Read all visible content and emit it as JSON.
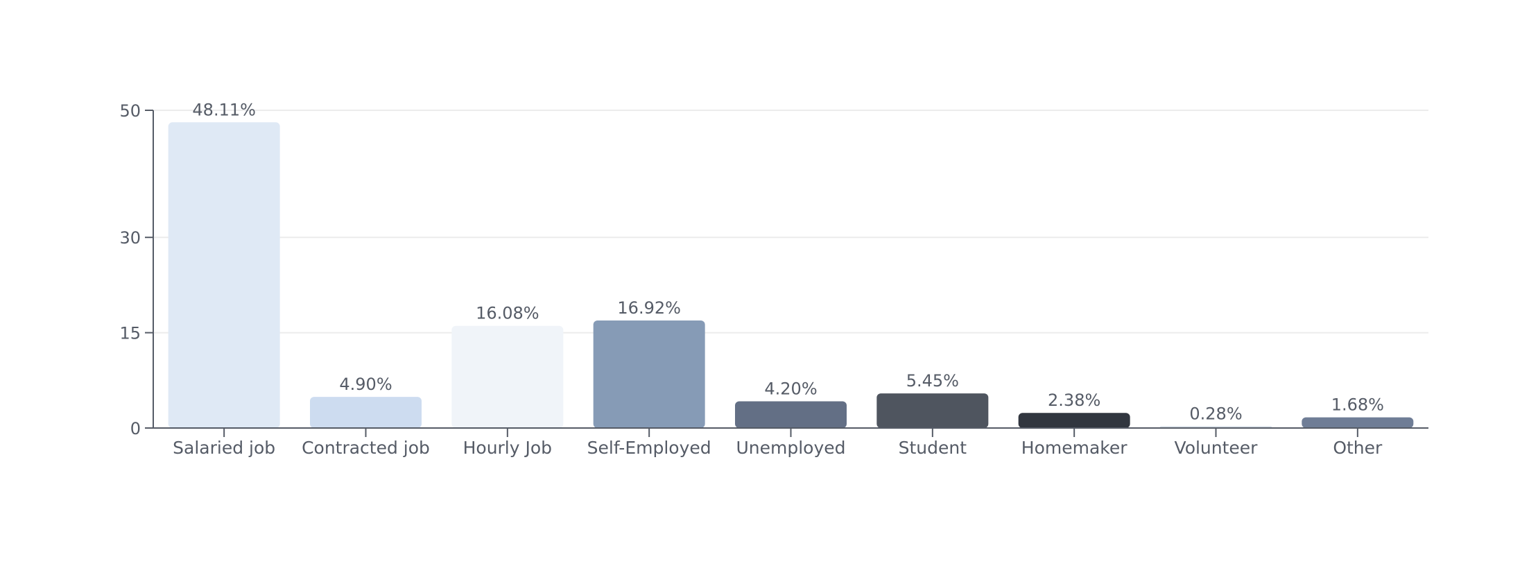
{
  "chart_data": {
    "type": "bar",
    "categories": [
      "Salaried job",
      "Contracted job",
      "Hourly Job",
      "Self-Employed",
      "Unemployed",
      "Student",
      "Homemaker",
      "Volunteer",
      "Other"
    ],
    "values": [
      48.11,
      4.9,
      16.08,
      16.92,
      4.2,
      5.45,
      2.38,
      0.28,
      1.68
    ],
    "value_labels": [
      "48.11%",
      "4.90%",
      "16.08%",
      "16.92%",
      "4.20%",
      "5.45%",
      "2.38%",
      "0.28%",
      "1.68%"
    ],
    "bar_colors": [
      "#dfe9f5",
      "#cddcf0",
      "#f0f4f9",
      "#869bb6",
      "#636f85",
      "#4f555f",
      "#31363f",
      "#d8dfe8",
      "#6f7d96"
    ],
    "yticks": [
      0,
      15,
      30,
      50
    ],
    "ylim": [
      0,
      50
    ],
    "grid": true,
    "title": "",
    "xlabel": "",
    "ylabel": ""
  },
  "colors": {
    "axis": "#555b66",
    "grid": "#ececec",
    "text": "#555b66"
  }
}
